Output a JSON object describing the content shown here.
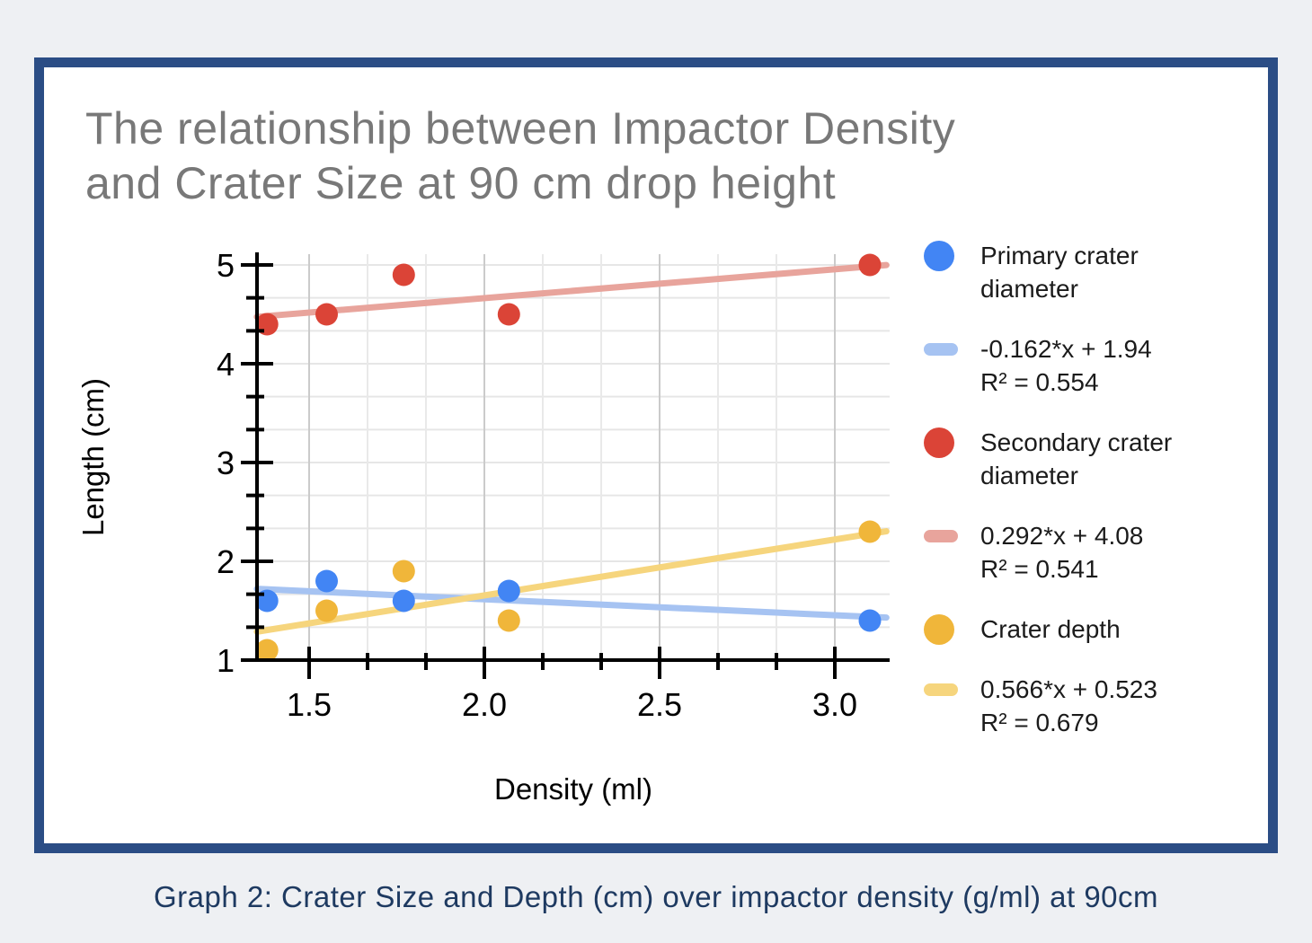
{
  "page": {
    "background_color": "#eef0f3",
    "caption": "Graph 2: Crater Size and Depth (cm) over impactor density (g/ml) at 90cm",
    "caption_color": "#1e3a61"
  },
  "card": {
    "border_color": "#2b4d85",
    "background_color": "#ffffff"
  },
  "title": {
    "line1": "The relationship between Impactor Density",
    "line2": "and Crater Size at 90 cm drop height",
    "color": "#787878"
  },
  "chart_data": {
    "type": "scatter",
    "title": "The relationship between Impactor Density and Crater Size at 90 cm drop height",
    "xlabel": "Density (ml)",
    "ylabel": "Length (cm)",
    "x_axis": {
      "min": 1.35,
      "max": 3.16,
      "major_ticks": [
        1.5,
        2.0,
        2.5,
        3.0
      ],
      "tick_labels": [
        "1.5",
        "2.0",
        "2.5",
        "3.0"
      ],
      "minor_ticks_per_major": 3
    },
    "y_axis": {
      "min": 1,
      "max": 5.11,
      "major_ticks": [
        1,
        2,
        3,
        4,
        5
      ],
      "tick_labels": [
        "1",
        "2",
        "3",
        "4",
        "5"
      ],
      "minor_ticks_per_major": 3
    },
    "grid": {
      "h_color": "#e6e6e6",
      "v_major_color": "#cbcbcb",
      "v_minor_color": "#e9e9e9",
      "axis_color": "#000000"
    },
    "x": [
      1.38,
      1.55,
      1.77,
      2.07,
      3.1
    ],
    "series": [
      {
        "name": "Primary crater diameter",
        "color": "#4285f4",
        "values": [
          1.6,
          1.8,
          1.6,
          1.7,
          1.4
        ],
        "trendline": {
          "slope": -0.162,
          "intercept": 1.94,
          "color": "#a6c3f2",
          "equation": "-0.162*x + 1.94",
          "r2": "R² = 0.554"
        }
      },
      {
        "name": "Secondary crater diameter",
        "color": "#db4437",
        "values": [
          4.4,
          4.5,
          4.9,
          4.5,
          5.0
        ],
        "trendline": {
          "slope": 0.292,
          "intercept": 4.08,
          "color": "#e8a49c",
          "equation": "0.292*x + 4.08",
          "r2": "R² = 0.541"
        }
      },
      {
        "name": "Crater depth",
        "color": "#f0b63a",
        "values": [
          1.1,
          1.5,
          1.9,
          1.4,
          2.3
        ],
        "trendline": {
          "slope": 0.566,
          "intercept": 0.523,
          "color": "#f6d57d",
          "equation": "0.566*x + 0.523",
          "r2": "R² = 0.679"
        }
      }
    ],
    "legend_position": "right"
  }
}
